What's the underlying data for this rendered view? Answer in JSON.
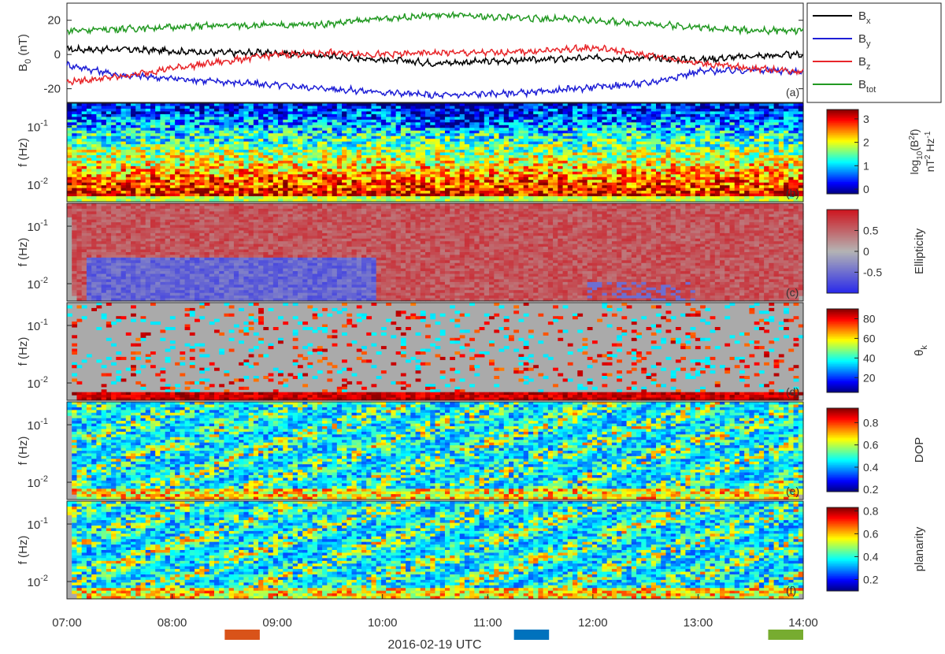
{
  "figure": {
    "date_label": "2016-02-19 UTC",
    "time_ticks": [
      "07:00",
      "08:00",
      "09:00",
      "10:00",
      "11:00",
      "12:00",
      "13:00",
      "14:00"
    ],
    "freq_ticks": [
      {
        "base": "10",
        "exp": "-1",
        "value": 0.1
      },
      {
        "base": "10",
        "exp": "-2",
        "value": 0.01
      }
    ],
    "freq_range_hz": [
      0.005,
      0.25
    ],
    "interval_markers": [
      {
        "start": "08:30",
        "end": "08:50",
        "color": "#d95319"
      },
      {
        "start": "11:15",
        "end": "11:35",
        "color": "#0072bd"
      },
      {
        "start": "13:40",
        "end": "14:00",
        "color": "#77ac30"
      }
    ]
  },
  "chart_data": [
    {
      "type": "line",
      "panel_label": "(a)",
      "ylabel": {
        "main": "B",
        "sub": "0",
        "rest": " (nT)"
      },
      "ylim": [
        -28,
        30
      ],
      "yticks": [
        20,
        0,
        -20
      ],
      "x_unit": "UTC hours",
      "x": [
        7.0,
        7.5,
        8.0,
        8.5,
        9.0,
        9.5,
        10.0,
        10.5,
        11.0,
        11.5,
        12.0,
        12.5,
        13.0,
        13.5,
        14.0
      ],
      "series": [
        {
          "name": "B",
          "sub": "x",
          "color": "#000000",
          "values": [
            3,
            3,
            2,
            1,
            1,
            -1,
            -3,
            -5,
            -4,
            -3,
            -2,
            -2,
            -3,
            -1,
            0
          ]
        },
        {
          "name": "B",
          "sub": "y",
          "color": "#1f1fd6",
          "values": [
            -6,
            -12,
            -14,
            -16,
            -18,
            -20,
            -22,
            -24,
            -23,
            -22,
            -19,
            -17,
            -10,
            -9,
            -10
          ]
        },
        {
          "name": "B",
          "sub": "z",
          "color": "#e8262a",
          "values": [
            -16,
            -13,
            -8,
            -4,
            0,
            1,
            0,
            1,
            1,
            2,
            4,
            0,
            -5,
            -8,
            -10
          ]
        },
        {
          "name": "B",
          "sub": "tot",
          "color": "#229922",
          "values": [
            14,
            15,
            16,
            17,
            17,
            18,
            21,
            23,
            22,
            21,
            20,
            18,
            16,
            14,
            14
          ]
        }
      ]
    },
    {
      "type": "heatmap",
      "panel_label": "(b)",
      "ylabel": "f (Hz)",
      "colorbar": {
        "label_lines": [
          "log10(B2f)",
          "nT2 Hz-1"
        ],
        "ticks": [
          "3",
          "2",
          "1",
          "0"
        ],
        "range": [
          -0.2,
          3.4
        ],
        "colormap": "jet"
      }
    },
    {
      "type": "heatmap",
      "panel_label": "(c)",
      "ylabel": "f (Hz)",
      "colorbar": {
        "label": "Ellipticity",
        "ticks": [
          "0.5",
          "0",
          "-0.5"
        ],
        "range": [
          -1,
          1
        ],
        "colormap": "blue-gray-red"
      }
    },
    {
      "type": "heatmap",
      "panel_label": "(d)",
      "ylabel": "f (Hz)",
      "colorbar": {
        "label": "θk",
        "ticks": [
          "80",
          "60",
          "40",
          "20"
        ],
        "range": [
          5,
          90
        ],
        "colormap": "jet"
      }
    },
    {
      "type": "heatmap",
      "panel_label": "(e)",
      "ylabel": "f (Hz)",
      "colorbar": {
        "label": "DOP",
        "ticks": [
          "0.8",
          "0.6",
          "0.4",
          "0.2"
        ],
        "range": [
          0.18,
          0.93
        ],
        "colormap": "jet"
      }
    },
    {
      "type": "heatmap",
      "panel_label": "(f)",
      "ylabel": "f (Hz)",
      "colorbar": {
        "label": "planarity",
        "ticks": [
          "0.8",
          "0.6",
          "0.4",
          "0.2"
        ],
        "range": [
          0.1,
          0.83
        ],
        "colormap": "jet"
      }
    }
  ]
}
